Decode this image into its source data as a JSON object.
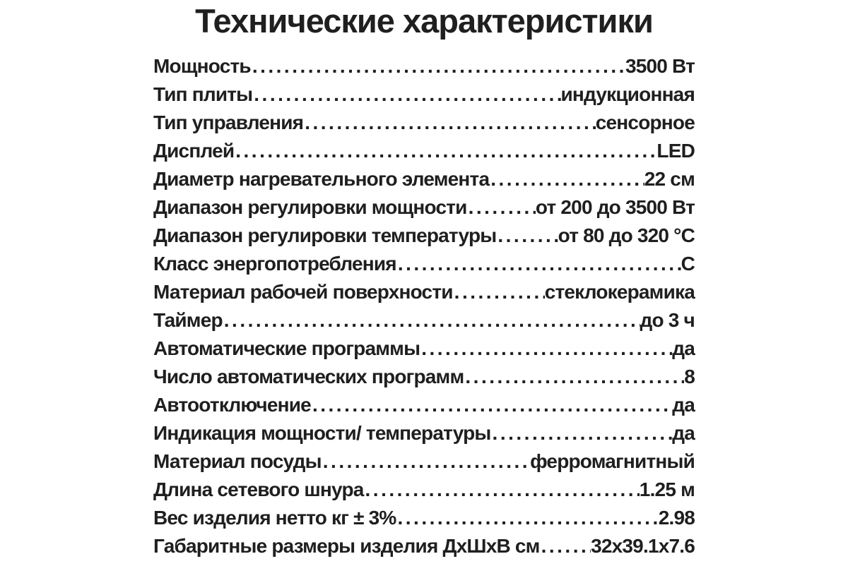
{
  "title": "Технические характеристики",
  "colors": {
    "text": "#1f1f1f",
    "background": "#ffffff"
  },
  "specs": [
    {
      "label": "Мощность",
      "value": "3500 Вт"
    },
    {
      "label": "Тип плиты",
      "value": "индукционная"
    },
    {
      "label": "Тип управления",
      "value": "сенсорное"
    },
    {
      "label": "Дисплей",
      "value": "LED"
    },
    {
      "label": "Диаметр нагревательного элемента",
      "value": "22 см"
    },
    {
      "label": "Диапазон регулировки мощности",
      "value": "от 200 до 3500 Вт"
    },
    {
      "label": "Диапазон регулировки температуры",
      "value": "от 80 до 320 °С"
    },
    {
      "label": "Класс энергопотребления",
      "value": "С"
    },
    {
      "label": "Материал рабочей поверхности",
      "value": "стеклокерамика"
    },
    {
      "label": "Таймер",
      "value": "до 3 ч"
    },
    {
      "label": "Автоматические программы",
      "value": "да"
    },
    {
      "label": "Число автоматических программ",
      "value": "8"
    },
    {
      "label": "Автоотключение",
      "value": "да"
    },
    {
      "label": "Индикация мощности/ температуры",
      "value": "да"
    },
    {
      "label": "Материал посуды",
      "value": "ферромагнитный"
    },
    {
      "label": "Длина сетевого шнура",
      "value": "1.25 м"
    },
    {
      "label": "Вес изделия нетто кг ± 3%",
      "value": "2.98"
    },
    {
      "label": "Габаритные размеры изделия ДхШхВ см",
      "value": "32х39.1х7.6"
    }
  ]
}
